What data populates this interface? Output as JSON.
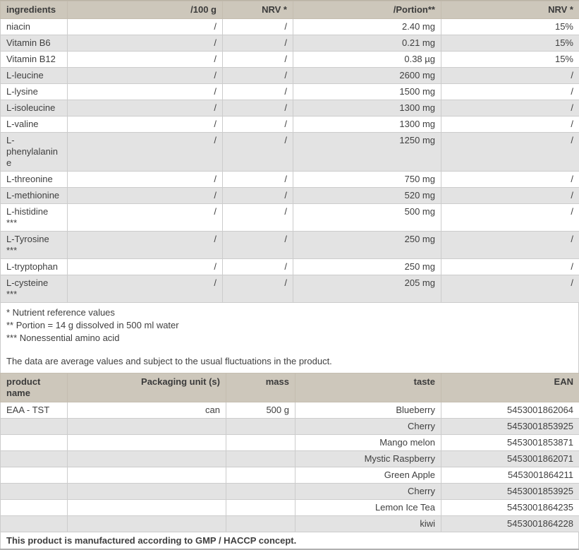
{
  "nutrition_table": {
    "headers": [
      "ingredients",
      "/100 g",
      "NRV *",
      "/Portion**",
      "NRV *"
    ],
    "rows": [
      [
        "niacin",
        "/",
        "/",
        "2.40 mg",
        "15%"
      ],
      [
        "Vitamin B6",
        "/",
        "/",
        "0.21 mg",
        "15%"
      ],
      [
        "Vitamin B12",
        "/",
        "/",
        "0.38 µg",
        "15%"
      ],
      [
        "L-leucine",
        "/",
        "/",
        "2600 mg",
        "/"
      ],
      [
        "L-lysine",
        "/",
        "/",
        "1500 mg",
        "/"
      ],
      [
        "L-isoleucine",
        "/",
        "/",
        "1300 mg",
        "/"
      ],
      [
        "L-valine",
        "/",
        "/",
        "1300 mg",
        "/"
      ],
      [
        "L-phenylalanine",
        "/",
        "/",
        "1250 mg",
        "/"
      ],
      [
        "L-threonine",
        "/",
        "/",
        "750 mg",
        "/"
      ],
      [
        "L-methionine",
        "/",
        "/",
        "520 mg",
        "/"
      ],
      [
        "L-histidine ***",
        "/",
        "/",
        "500 mg",
        "/"
      ],
      [
        "L-Tyrosine ***",
        "/",
        "/",
        "250 mg",
        "/"
      ],
      [
        "L-tryptophan",
        "/",
        "/",
        "250 mg",
        "/"
      ],
      [
        "L-cysteine ***",
        "/",
        "/",
        "205 mg",
        "/"
      ]
    ]
  },
  "footnotes": [
    "* Nutrient reference values",
    "** Portion = 14 g dissolved in 500 ml water",
    "*** Nonessential amino acid"
  ],
  "average_note": "The data are average values and subject to the usual fluctuations in the product.",
  "product_table": {
    "headers": [
      "product name",
      "Packaging unit (s)",
      "mass",
      "taste",
      "EAN"
    ],
    "rows": [
      [
        "EAA - TST",
        "can",
        "500 g",
        "Blueberry",
        "5453001862064"
      ],
      [
        "",
        "",
        "",
        "Cherry",
        "5453001853925"
      ],
      [
        "",
        "",
        "",
        "Mango melon",
        "5453001853871"
      ],
      [
        "",
        "",
        "",
        "Mystic Raspberry",
        "5453001862071"
      ],
      [
        "",
        "",
        "",
        "Green Apple",
        "5453001864211"
      ],
      [
        "",
        "",
        "",
        "Cherry",
        "5453001853925"
      ],
      [
        "",
        "",
        "",
        "Lemon Ice Tea",
        "5453001864235"
      ],
      [
        "",
        "",
        "",
        "kiwi",
        "5453001864228"
      ]
    ]
  },
  "footer_text": "This product is manufactured according to GMP / HACCP concept.",
  "colors": {
    "header_bg": "#cdc7bb",
    "row_alt_bg": "#e3e3e3",
    "row_bg": "#ffffff",
    "border": "#cccccc",
    "text": "#3f3f3f"
  }
}
